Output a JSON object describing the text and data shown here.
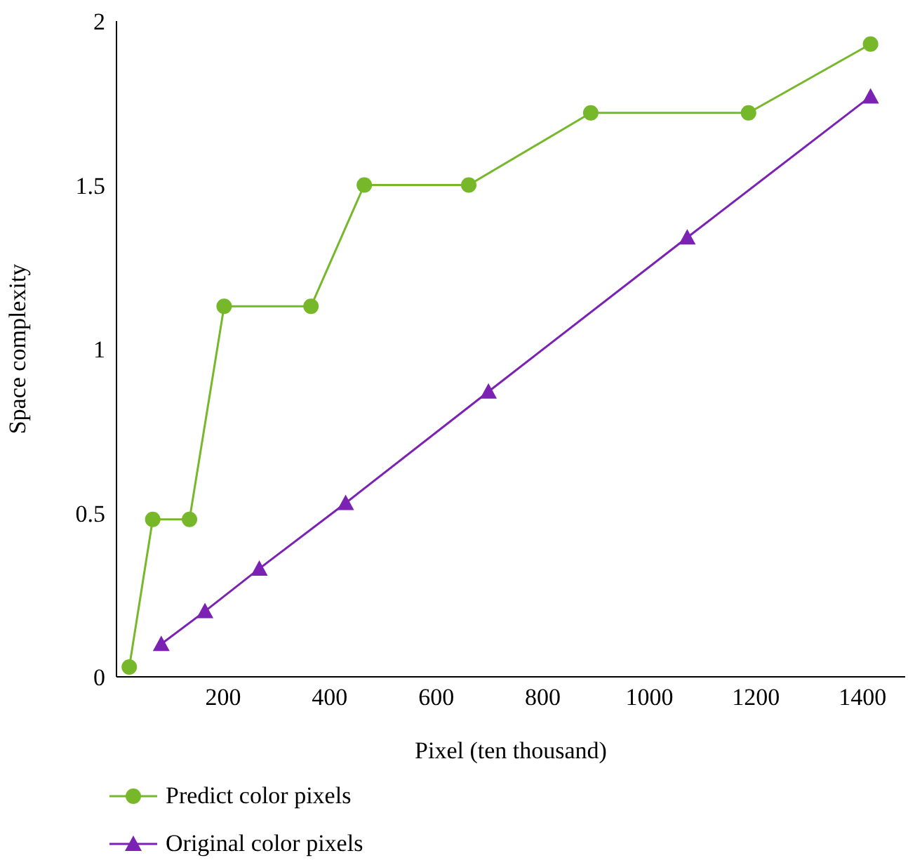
{
  "chart_data": {
    "type": "line",
    "xlabel": "Pixel (ten thousand)",
    "ylabel": "Space complexity",
    "xlim": [
      0,
      1480
    ],
    "xticks": [
      200,
      400,
      600,
      800,
      1000,
      1200,
      1400
    ],
    "ylim": [
      0,
      2
    ],
    "yticks": [
      0,
      0.5,
      1,
      1.5,
      2
    ],
    "grid": false,
    "legend": "bottom left",
    "series": [
      {
        "name": "Predict color pixels",
        "color": "#76b82a",
        "marker": "circle",
        "x": [
          24,
          68,
          137,
          202,
          365,
          465,
          661,
          890,
          1186,
          1415
        ],
        "values": [
          0.03,
          0.48,
          0.48,
          1.13,
          1.13,
          1.5,
          1.5,
          1.72,
          1.72,
          1.93
        ]
      },
      {
        "name": "Original color pixels",
        "color": "#7b22b5",
        "marker": "triangle",
        "x": [
          84,
          166,
          268,
          430,
          698,
          1071,
          1415
        ],
        "values": [
          0.1,
          0.2,
          0.33,
          0.53,
          0.87,
          1.34,
          1.77
        ]
      }
    ]
  }
}
